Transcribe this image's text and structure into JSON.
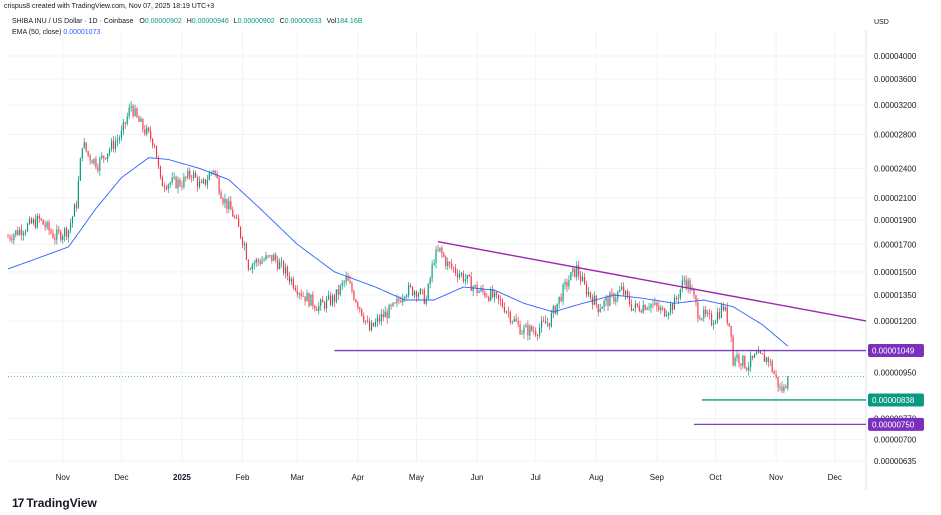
{
  "header": {
    "created_by": "crispus8 created with TradingView.com, Nov 07, 2025 18:19 UTC+3",
    "symbol": "SHIBA INU / US Dollar · 1D · Coinbase",
    "ohlc": {
      "open_label": "O",
      "open": "0.00000902",
      "high_label": "H",
      "high": "0.00000946",
      "low_label": "L",
      "low": "0.00000902",
      "close_label": "C",
      "close": "0.00000933",
      "vol_label": "Vol",
      "vol": "184.16B"
    },
    "ema_label": "EMA (50, close)",
    "ema_value": "0.00001073"
  },
  "axis": {
    "currency": "USD"
  },
  "brand": {
    "name": "TradingView",
    "logo_mark": "17"
  },
  "colors": {
    "up": "#089981",
    "down": "#f23645",
    "ema": "#2962ff",
    "trendline": "#9c27b0",
    "support": "#7e3fbf",
    "support_green": "#089981",
    "label_purple": "#7b2fbe",
    "label_green": "#089981"
  },
  "chart_data": {
    "type": "candlestick",
    "title": "SHIBA INU / US Dollar · 1D · Coinbase",
    "y_scale": "log",
    "ylim": [
      5.9e-06,
      4.7e-06
    ],
    "y_ticks": [
      "0.00004000",
      "0.00003600",
      "0.00003200",
      "0.00002800",
      "0.00002400",
      "0.00002100",
      "0.00001900",
      "0.00001700",
      "0.00001500",
      "0.00001350",
      "0.00001200",
      "0.00000950",
      "0.00000770",
      "0.00000700",
      "0.00000635"
    ],
    "y_ticks_values": [
      4e-05,
      3.6e-05,
      3.2e-05,
      2.8e-05,
      2.4e-05,
      2.1e-05,
      1.9e-05,
      1.7e-05,
      1.5e-05,
      1.35e-05,
      1.2e-05,
      9.5e-06,
      7.7e-06,
      7e-06,
      6.35e-06
    ],
    "x_ticks": [
      {
        "label": "Nov",
        "date": "2024-11-01"
      },
      {
        "label": "Dec",
        "date": "2024-12-01"
      },
      {
        "label": "2025",
        "date": "2025-01-01",
        "bold": true
      },
      {
        "label": "Feb",
        "date": "2025-02-01"
      },
      {
        "label": "Mar",
        "date": "2025-03-01"
      },
      {
        "label": "Apr",
        "date": "2025-04-01"
      },
      {
        "label": "May",
        "date": "2025-05-01"
      },
      {
        "label": "Jun",
        "date": "2025-06-01"
      },
      {
        "label": "Jul",
        "date": "2025-07-01"
      },
      {
        "label": "Aug",
        "date": "2025-08-01"
      },
      {
        "label": "Sep",
        "date": "2025-09-01"
      },
      {
        "label": "Oct",
        "date": "2025-10-01"
      },
      {
        "label": "Nov",
        "date": "2025-11-01"
      },
      {
        "label": "Dec",
        "date": "2025-12-01"
      }
    ],
    "x_range": [
      "2024-10-04",
      "2025-12-17"
    ],
    "price_anchors": [
      [
        "2024-10-04",
        1.76e-05
      ],
      [
        "2024-10-12",
        1.83e-05
      ],
      [
        "2024-10-20",
        1.9e-05
      ],
      [
        "2024-10-28",
        1.76e-05
      ],
      [
        "2024-11-04",
        1.82e-05
      ],
      [
        "2024-11-08",
        2.05e-05
      ],
      [
        "2024-11-11",
        2.7e-05
      ],
      [
        "2024-11-14",
        2.55e-05
      ],
      [
        "2024-11-19",
        2.45e-05
      ],
      [
        "2024-11-24",
        2.6e-05
      ],
      [
        "2024-12-01",
        2.8e-05
      ],
      [
        "2024-12-06",
        3.2e-05
      ],
      [
        "2024-12-09",
        3e-05
      ],
      [
        "2024-12-13",
        2.85e-05
      ],
      [
        "2024-12-18",
        2.7e-05
      ],
      [
        "2024-12-21",
        2.25e-05
      ],
      [
        "2024-12-27",
        2.25e-05
      ],
      [
        "2025-01-01",
        2.25e-05
      ],
      [
        "2025-01-06",
        2.35e-05
      ],
      [
        "2025-01-11",
        2.2e-05
      ],
      [
        "2025-01-17",
        2.4e-05
      ],
      [
        "2025-01-22",
        2.1e-05
      ],
      [
        "2025-01-27",
        1.95e-05
      ],
      [
        "2025-02-02",
        1.7e-05
      ],
      [
        "2025-02-04",
        1.55e-05
      ],
      [
        "2025-02-10",
        1.58e-05
      ],
      [
        "2025-02-17",
        1.6e-05
      ],
      [
        "2025-02-24",
        1.48e-05
      ],
      [
        "2025-03-04",
        1.35e-05
      ],
      [
        "2025-03-12",
        1.28e-05
      ],
      [
        "2025-03-20",
        1.33e-05
      ],
      [
        "2025-03-26",
        1.45e-05
      ],
      [
        "2025-04-02",
        1.28e-05
      ],
      [
        "2025-04-07",
        1.15e-05
      ],
      [
        "2025-04-13",
        1.22e-05
      ],
      [
        "2025-04-20",
        1.28e-05
      ],
      [
        "2025-04-25",
        1.38e-05
      ],
      [
        "2025-05-01",
        1.38e-05
      ],
      [
        "2025-05-06",
        1.32e-05
      ],
      [
        "2025-05-10",
        1.6e-05
      ],
      [
        "2025-05-13",
        1.65e-05
      ],
      [
        "2025-05-17",
        1.55e-05
      ],
      [
        "2025-05-24",
        1.48e-05
      ],
      [
        "2025-06-01",
        1.38e-05
      ],
      [
        "2025-06-08",
        1.35e-05
      ],
      [
        "2025-06-15",
        1.28e-05
      ],
      [
        "2025-06-20",
        1.2e-05
      ],
      [
        "2025-06-24",
        1.15e-05
      ],
      [
        "2025-07-01",
        1.15e-05
      ],
      [
        "2025-07-08",
        1.2e-05
      ],
      [
        "2025-07-14",
        1.35e-05
      ],
      [
        "2025-07-18",
        1.45e-05
      ],
      [
        "2025-07-22",
        1.52e-05
      ],
      [
        "2025-07-26",
        1.4e-05
      ],
      [
        "2025-08-02",
        1.28e-05
      ],
      [
        "2025-08-09",
        1.33e-05
      ],
      [
        "2025-08-14",
        1.38e-05
      ],
      [
        "2025-08-20",
        1.27e-05
      ],
      [
        "2025-08-28",
        1.3e-05
      ],
      [
        "2025-09-04",
        1.25e-05
      ],
      [
        "2025-09-10",
        1.3e-05
      ],
      [
        "2025-09-15",
        1.45e-05
      ],
      [
        "2025-09-18",
        1.4e-05
      ],
      [
        "2025-09-22",
        1.25e-05
      ],
      [
        "2025-09-29",
        1.2e-05
      ],
      [
        "2025-10-05",
        1.28e-05
      ],
      [
        "2025-10-09",
        1.15e-05
      ],
      [
        "2025-10-10",
        9.8e-06
      ],
      [
        "2025-10-11",
        1.03e-05
      ],
      [
        "2025-10-17",
        9.8e-06
      ],
      [
        "2025-10-22",
        1.02e-05
      ],
      [
        "2025-10-28",
        1.01e-05
      ],
      [
        "2025-11-03",
        8.8e-06
      ],
      [
        "2025-11-05",
        8.8e-06
      ],
      [
        "2025-11-07",
        9.3e-06
      ]
    ],
    "ema_50_anchors": [
      [
        "2024-10-04",
        1.52e-05
      ],
      [
        "2024-10-20",
        1.6e-05
      ],
      [
        "2024-11-04",
        1.68e-05
      ],
      [
        "2024-11-18",
        2e-05
      ],
      [
        "2024-12-01",
        2.3e-05
      ],
      [
        "2024-12-15",
        2.52e-05
      ],
      [
        "2024-12-25",
        2.5e-05
      ],
      [
        "2025-01-10",
        2.4e-05
      ],
      [
        "2025-01-25",
        2.28e-05
      ],
      [
        "2025-02-10",
        2e-05
      ],
      [
        "2025-03-01",
        1.7e-05
      ],
      [
        "2025-03-20",
        1.5e-05
      ],
      [
        "2025-04-10",
        1.4e-05
      ],
      [
        "2025-04-25",
        1.32e-05
      ],
      [
        "2025-05-10",
        1.32e-05
      ],
      [
        "2025-05-25",
        1.4e-05
      ],
      [
        "2025-06-10",
        1.38e-05
      ],
      [
        "2025-06-25",
        1.3e-05
      ],
      [
        "2025-07-10",
        1.25e-05
      ],
      [
        "2025-07-25",
        1.3e-05
      ],
      [
        "2025-08-10",
        1.35e-05
      ],
      [
        "2025-08-25",
        1.33e-05
      ],
      [
        "2025-09-10",
        1.3e-05
      ],
      [
        "2025-09-25",
        1.32e-05
      ],
      [
        "2025-10-10",
        1.28e-05
      ],
      [
        "2025-10-25",
        1.18e-05
      ],
      [
        "2025-11-07",
        1.07e-05
      ]
    ],
    "trendline": {
      "from": [
        "2025-05-12",
        1.72e-05
      ],
      "to": [
        "2025-12-17",
        1.2e-05
      ]
    },
    "horizontal_lines": [
      {
        "from_date": "2025-03-20",
        "to_date": "2025-12-17",
        "price": 1.049e-05,
        "label": "0.00001049",
        "color": "purple"
      },
      {
        "from_date": "2025-09-24",
        "to_date": "2025-12-17",
        "price": 8.38e-06,
        "label": "0.00000838",
        "color": "green"
      },
      {
        "from_date": "2025-09-20",
        "to_date": "2025-12-17",
        "price": 7.5e-06,
        "label": "0.00000750",
        "color": "purple"
      }
    ],
    "last_price_dotted": 9.33e-06,
    "last_date": "2025-11-07"
  }
}
